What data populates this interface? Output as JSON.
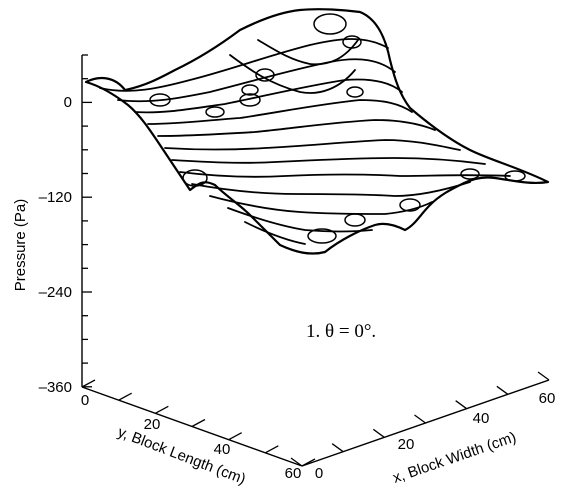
{
  "chart_data": {
    "type": "surface",
    "xlabel": "x, Block Width (cm)",
    "ylabel": "y, Block Length (cm)",
    "zlabel": "Pressure (Pa)",
    "x_ticks": [
      "0",
      "20",
      "40",
      "60"
    ],
    "y_ticks": [
      "0",
      "20",
      "40",
      "60"
    ],
    "z_ticks": [
      "0",
      "–120",
      "–240",
      "–360"
    ],
    "x_range": [
      0,
      60
    ],
    "y_range": [
      0,
      60
    ],
    "z_range": [
      -360,
      60
    ],
    "annotation": "1. θ = 0°.",
    "surface_outline": [
      {
        "x": 0,
        "y": 0,
        "z": 0
      },
      {
        "x": 0,
        "y": 15,
        "z": -30
      },
      {
        "x": 0,
        "y": 28,
        "z": -120
      },
      {
        "x": 0,
        "y": 40,
        "z": -170
      },
      {
        "x": 0,
        "y": 60,
        "z": -180
      },
      {
        "x": 30,
        "y": 60,
        "z": -160
      },
      {
        "x": 60,
        "y": 60,
        "z": -120
      },
      {
        "x": 60,
        "y": 30,
        "z": 20
      },
      {
        "x": 60,
        "y": 0,
        "z": 40
      },
      {
        "x": 30,
        "y": 0,
        "z": 10
      }
    ]
  }
}
